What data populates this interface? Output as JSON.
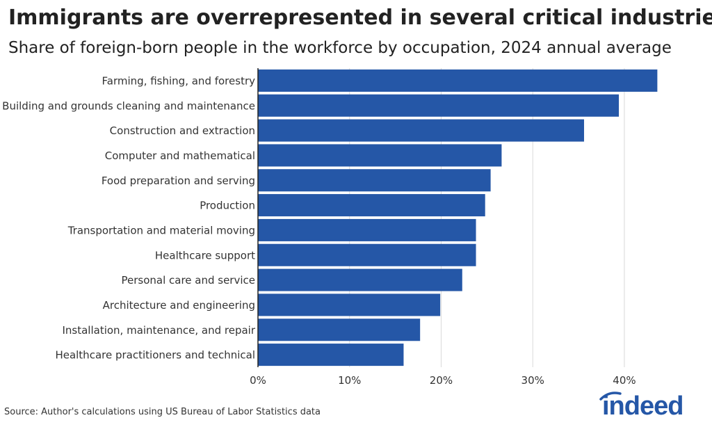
{
  "title": "Immigrants are overrepresented in several critical industries",
  "subtitle": "Share of foreign-born people in the workforce by occupation, 2024 annual average",
  "source": "Source: Author's calculations using US Bureau of Labor Statistics data",
  "logo": {
    "text": "indeed",
    "color": "#2557a7"
  },
  "colors": {
    "bar": "#2557a7",
    "grid": "#d9d9d9",
    "axis": "#222222",
    "text": "#333333"
  },
  "chart_data": {
    "type": "bar",
    "orientation": "horizontal",
    "categories": [
      "Farming, fishing, and forestry",
      "Building and grounds cleaning and maintenance",
      "Construction and extraction",
      "Computer and mathematical",
      "Food preparation and serving",
      "Production",
      "Transportation and material moving",
      "Healthcare support",
      "Personal care and service",
      "Architecture and engineering",
      "Installation, maintenance, and repair",
      "Healthcare practitioners and technical"
    ],
    "values": [
      43.6,
      39.4,
      35.6,
      26.6,
      25.4,
      24.8,
      23.8,
      23.8,
      22.3,
      19.9,
      17.7,
      15.9
    ],
    "xlim": [
      0,
      46
    ],
    "x_ticks": [
      0,
      10,
      20,
      30,
      40
    ],
    "x_tick_labels": [
      "0%",
      "10%",
      "20%",
      "30%",
      "40%"
    ],
    "grid": "vertical",
    "title": "Immigrants are overrepresented in several critical industries",
    "subtitle": "Share of foreign-born people in the workforce by occupation, 2024 annual average",
    "xlabel": "",
    "ylabel": ""
  }
}
